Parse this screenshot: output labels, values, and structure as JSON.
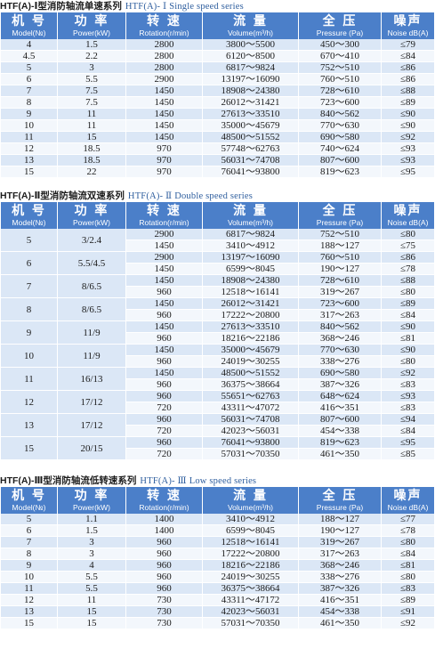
{
  "sections": [
    {
      "title_cn": "HTF(A)-Ⅰ型消防轴流单速系列",
      "title_en": "HTF(A)- Ⅰ Single speed series",
      "headers": [
        {
          "cn": "机 号",
          "en": "Model(№)"
        },
        {
          "cn": "功 率",
          "en": "Power(kW)"
        },
        {
          "cn": "转 速",
          "en": "Rotation(r/min)"
        },
        {
          "cn": "流 量",
          "en": "Volume(m³/h)"
        },
        {
          "cn": "全 压",
          "en": "Pressure (Pa)"
        },
        {
          "cn": "噪声",
          "en": "Noise dB(A)"
        }
      ],
      "rows": [
        [
          "4",
          "1.5",
          "2800",
          "3800～5500",
          "450～300",
          "≤79"
        ],
        [
          "4.5",
          "2.2",
          "2800",
          "6120～8500",
          "670～410",
          "≤84"
        ],
        [
          "5",
          "3",
          "2800",
          "6817～9824",
          "752～510",
          "≤86"
        ],
        [
          "6",
          "5.5",
          "2900",
          "13197～16090",
          "760～510",
          "≤86"
        ],
        [
          "7",
          "7.5",
          "1450",
          "18908～24380",
          "728～610",
          "≤88"
        ],
        [
          "8",
          "7.5",
          "1450",
          "26012～31421",
          "723～600",
          "≤89"
        ],
        [
          "9",
          "11",
          "1450",
          "27613～33510",
          "840～562",
          "≤90"
        ],
        [
          "10",
          "11",
          "1450",
          "35000～45679",
          "770～630",
          "≤90"
        ],
        [
          "11",
          "15",
          "1450",
          "48500～51552",
          "690～580",
          "≤92"
        ],
        [
          "12",
          "18.5",
          "970",
          "57748～62763",
          "740～624",
          "≤93"
        ],
        [
          "13",
          "18.5",
          "970",
          "56031～74708",
          "807～600",
          "≤93"
        ],
        [
          "15",
          "22",
          "970",
          "76041～93800",
          "819～623",
          "≤95"
        ]
      ]
    },
    {
      "title_cn": "HTF(A)-Ⅱ型消防轴流双速系列",
      "title_en": "HTF(A)- Ⅱ Double speed series",
      "headers": [
        {
          "cn": "机 号",
          "en": "Model(№)"
        },
        {
          "cn": "功 率",
          "en": "Power(kW)"
        },
        {
          "cn": "转 速",
          "en": "Rotation(r/min)"
        },
        {
          "cn": "流 量",
          "en": "Volume(m³/h)"
        },
        {
          "cn": "全 压",
          "en": "Pressure (Pa)"
        },
        {
          "cn": "噪声",
          "en": "Noise dB(A)"
        }
      ],
      "groups": [
        {
          "model": "5",
          "power": "3/2.4",
          "rows": [
            [
              "2900",
              "6817～9824",
              "752～510",
              "≤80"
            ],
            [
              "1450",
              "3410～4912",
              "188～127",
              "≤75"
            ]
          ]
        },
        {
          "model": "6",
          "power": "5.5/4.5",
          "rows": [
            [
              "2900",
              "13197～16090",
              "760～510",
              "≤86"
            ],
            [
              "1450",
              "6599～8045",
              "190～127",
              "≤78"
            ]
          ]
        },
        {
          "model": "7",
          "power": "8/6.5",
          "rows": [
            [
              "1450",
              "18908～24380",
              "728～610",
              "≤88"
            ],
            [
              "960",
              "12518～16141",
              "319～267",
              "≤80"
            ]
          ]
        },
        {
          "model": "8",
          "power": "8/6.5",
          "rows": [
            [
              "1450",
              "26012～31421",
              "723～600",
              "≤89"
            ],
            [
              "960",
              "17222～20800",
              "317～263",
              "≤84"
            ]
          ]
        },
        {
          "model": "9",
          "power": "11/9",
          "rows": [
            [
              "1450",
              "27613～33510",
              "840～562",
              "≤90"
            ],
            [
              "960",
              "18216～22186",
              "368～246",
              "≤81"
            ]
          ]
        },
        {
          "model": "10",
          "power": "11/9",
          "rows": [
            [
              "1450",
              "35000～45679",
              "770～630",
              "≤90"
            ],
            [
              "960",
              "24019～30255",
              "338～276",
              "≤80"
            ]
          ]
        },
        {
          "model": "11",
          "power": "16/13",
          "rows": [
            [
              "1450",
              "48500～51552",
              "690～580",
              "≤92"
            ],
            [
              "960",
              "36375～38664",
              "387～326",
              "≤83"
            ]
          ]
        },
        {
          "model": "12",
          "power": "17/12",
          "rows": [
            [
              "960",
              "55651～62763",
              "648～624",
              "≤93"
            ],
            [
              "720",
              "43311～47072",
              "416～351",
              "≤83"
            ]
          ]
        },
        {
          "model": "13",
          "power": "17/12",
          "rows": [
            [
              "960",
              "56031～74708",
              "807～600",
              "≤94"
            ],
            [
              "720",
              "42023～56031",
              "454～338",
              "≤84"
            ]
          ]
        },
        {
          "model": "15",
          "power": "20/15",
          "rows": [
            [
              "960",
              "76041～93800",
              "819～623",
              "≤95"
            ],
            [
              "720",
              "57031～70350",
              "461～350",
              "≤85"
            ]
          ]
        }
      ]
    },
    {
      "title_cn": "HTF(A)-Ⅲ型消防轴流低转速系列",
      "title_en": "HTF(A)- Ⅲ Low speed series",
      "headers": [
        {
          "cn": "机 号",
          "en": "Model(№)"
        },
        {
          "cn": "功 率",
          "en": "Power(kW)"
        },
        {
          "cn": "转 速",
          "en": "Rotation(r/min)"
        },
        {
          "cn": "流 量",
          "en": "Volume(m³/h)"
        },
        {
          "cn": "全 压",
          "en": "Pressure (Pa)"
        },
        {
          "cn": "噪声",
          "en": "Noise dB(A)"
        }
      ],
      "rows": [
        [
          "5",
          "1.1",
          "1400",
          "3410～4912",
          "188～127",
          "≤77"
        ],
        [
          "6",
          "1.5",
          "1400",
          "6599～8045",
          "190～127",
          "≤78"
        ],
        [
          "7",
          "3",
          "960",
          "12518～16141",
          "319～267",
          "≤80"
        ],
        [
          "8",
          "3",
          "960",
          "17222～20800",
          "317～263",
          "≤84"
        ],
        [
          "9",
          "4",
          "960",
          "18216～22186",
          "368～246",
          "≤81"
        ],
        [
          "10",
          "5.5",
          "960",
          "24019～30255",
          "338～276",
          "≤80"
        ],
        [
          "11",
          "5.5",
          "960",
          "36375～38664",
          "387～326",
          "≤83"
        ],
        [
          "12",
          "11",
          "730",
          "43311～47172",
          "416～351",
          "≤89"
        ],
        [
          "13",
          "15",
          "730",
          "42023～56031",
          "454～338",
          "≤91"
        ],
        [
          "15",
          "15",
          "730",
          "57031～70350",
          "461～350",
          "≤92"
        ]
      ]
    }
  ],
  "colors": {
    "header_bg": "#4b7fc9",
    "row_odd": "#dbe7f6",
    "row_even": "#f3f7fc",
    "title_en": "#2e5e9e"
  }
}
